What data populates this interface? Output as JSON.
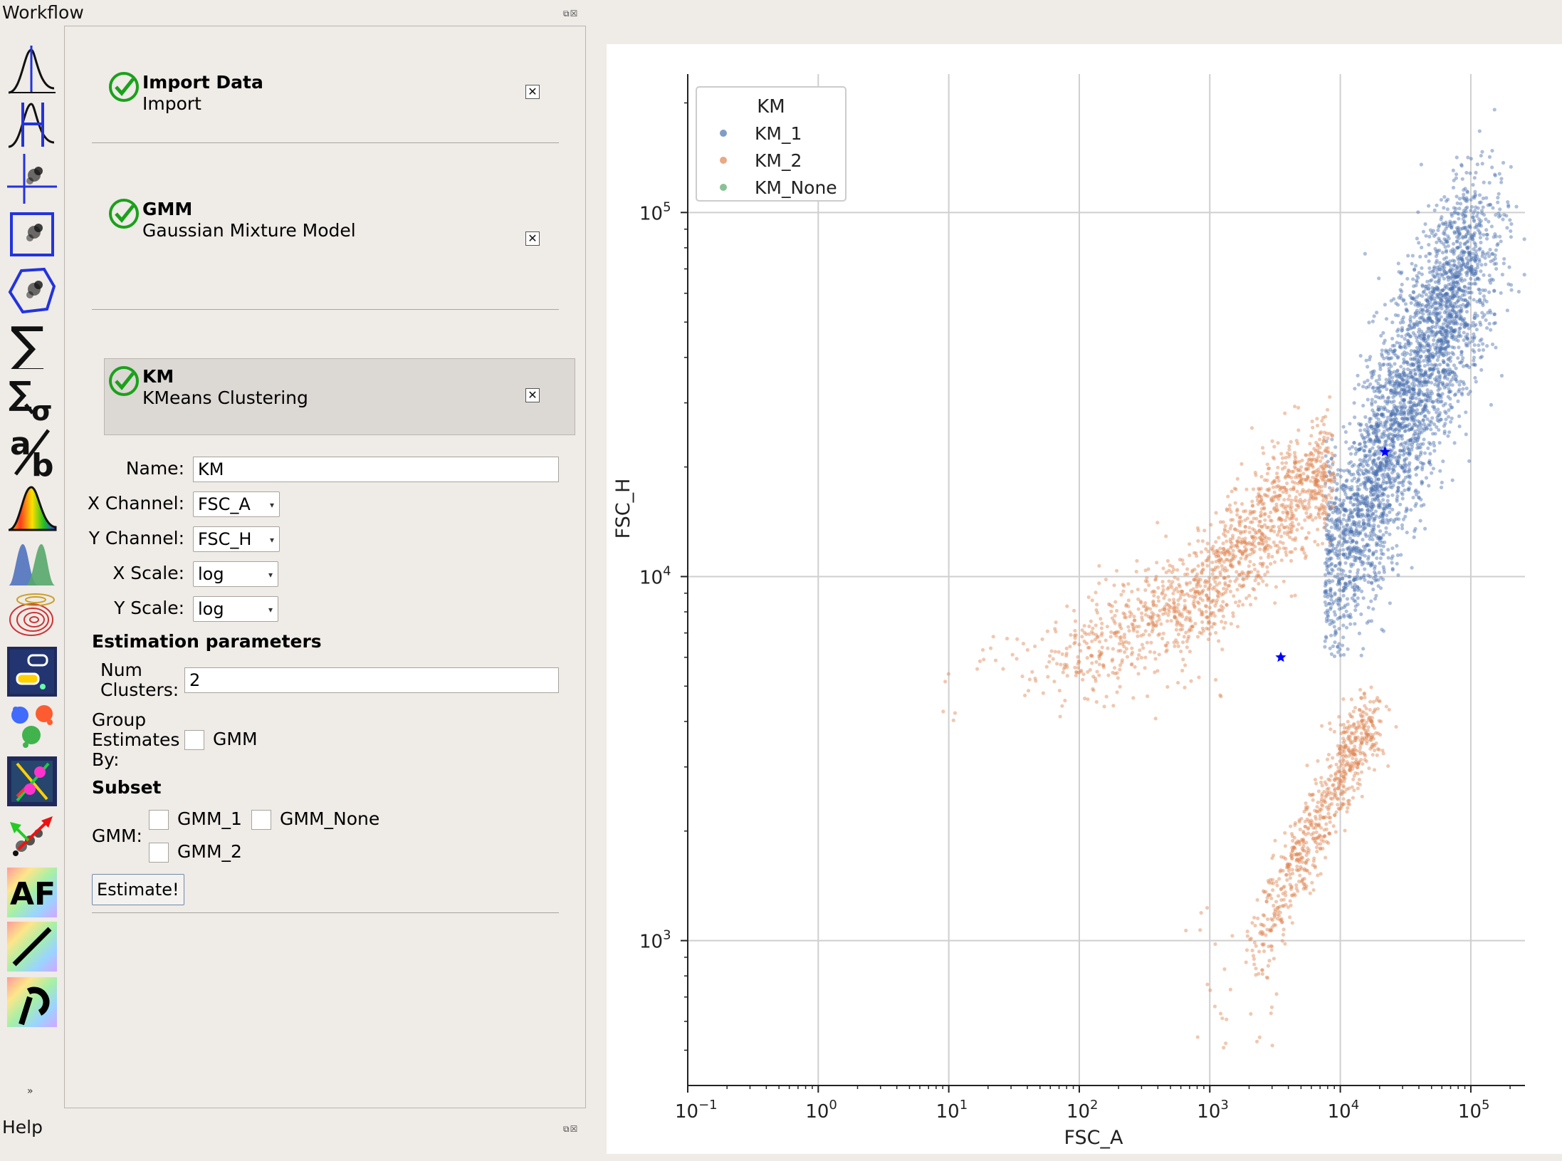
{
  "docks": {
    "workflow_title": "Workflow",
    "help_title": "Help",
    "dock_buttons": "⧉☒"
  },
  "toolbar": {
    "icons": [
      "histogram-icon",
      "histogram-gate-icon",
      "crosshair-scatter-icon",
      "rectangle-gate-icon",
      "polygon-gate-icon",
      "sum-icon",
      "sum-sigma-icon",
      "ratio-icon",
      "color-histogram-icon",
      "gaussian-peaks-icon",
      "density-contour-icon",
      "image-cells-icon",
      "cluster-colors-icon",
      "pca-icon",
      "compensation-arrow-icon",
      "autofluorescence-icon",
      "bleedthrough-icon",
      "bead-calibration-icon"
    ],
    "af_label": "AF",
    "ratio_a": "a",
    "ratio_b": "b",
    "more_glyph": "»",
    "bleed_glyph": "/",
    "bead_glyph": "⯳"
  },
  "workflow": {
    "items": [
      {
        "title": "Import Data",
        "subtitle": "Import"
      },
      {
        "title": "GMM",
        "subtitle": "Gaussian Mixture Model"
      },
      {
        "title": "KM",
        "subtitle": "KMeans Clustering"
      }
    ],
    "form": {
      "name_label": "Name:",
      "name_value": "KM",
      "xchannel_label": "X Channel:",
      "xchannel_value": "FSC_A",
      "ychannel_label": "Y Channel:",
      "ychannel_value": "FSC_H",
      "xscale_label": "X Scale:",
      "xscale_value": "log",
      "yscale_label": "Y Scale:",
      "yscale_value": "log",
      "estimation_header": "Estimation parameters",
      "num_clusters_label_1": "Num",
      "num_clusters_label_2": "Clusters:",
      "num_clusters_value": "2",
      "group_by_label_1": "Group",
      "group_by_label_2": "Estimates",
      "group_by_label_3": "By:",
      "group_by_option": "GMM",
      "subset_header": "Subset",
      "subset_gmm_label": "GMM:",
      "subset_options": [
        "GMM_1",
        "GMM_None",
        "GMM_2"
      ],
      "estimate_button": "Estimate!"
    }
  },
  "colors": {
    "accent_check": "#1aa11a",
    "km1": "#4c72b0",
    "km2": "#dd8452",
    "kmnone": "#55a868",
    "centroid": "#0000ff"
  },
  "chart_data": {
    "type": "scatter",
    "xlabel": "FSC_A",
    "ylabel": "FSC_H",
    "xscale": "log",
    "yscale": "log",
    "xlim": [
      0.1,
      260000
    ],
    "ylim": [
      400,
      240000
    ],
    "grid": true,
    "xticks": [
      {
        "base": "10",
        "exp": "−1"
      },
      {
        "base": "10",
        "exp": "0"
      },
      {
        "base": "10",
        "exp": "1"
      },
      {
        "base": "10",
        "exp": "2"
      },
      {
        "base": "10",
        "exp": "3"
      },
      {
        "base": "10",
        "exp": "4"
      },
      {
        "base": "10",
        "exp": "5"
      }
    ],
    "xtick_values": [
      0.1,
      1,
      10,
      100,
      1000,
      10000,
      100000
    ],
    "yticks": [
      {
        "base": "10",
        "exp": "3"
      },
      {
        "base": "10",
        "exp": "4"
      },
      {
        "base": "10",
        "exp": "5"
      }
    ],
    "ytick_values": [
      1000,
      10000,
      100000
    ],
    "legend": {
      "title": "KM",
      "position": "top-left",
      "entries": [
        "KM_1",
        "KM_2",
        "KM_None"
      ]
    },
    "series": [
      {
        "name": "KM_1",
        "color": "#4c72b0",
        "clusters": [
          {
            "x_range": [
              8000,
              60000
            ],
            "y_center_of_x": "diagonal",
            "y_range": [
              8000,
              120000
            ],
            "n": 3200
          }
        ]
      },
      {
        "name": "KM_2",
        "color": "#dd8452",
        "clusters": [
          {
            "x_range": [
              60,
              9000
            ],
            "y_range": [
              4000,
              14000
            ],
            "n": 1400
          },
          {
            "x_range": [
              1000,
              16000
            ],
            "y_range": [
              700,
              4500
            ],
            "n": 700
          }
        ]
      },
      {
        "name": "KM_None",
        "color": "#55a868",
        "clusters": []
      }
    ],
    "centroids": [
      {
        "name": "KM_1",
        "x": 22000,
        "y": 22000
      },
      {
        "name": "KM_2",
        "x": 3500,
        "y": 6000
      }
    ]
  }
}
